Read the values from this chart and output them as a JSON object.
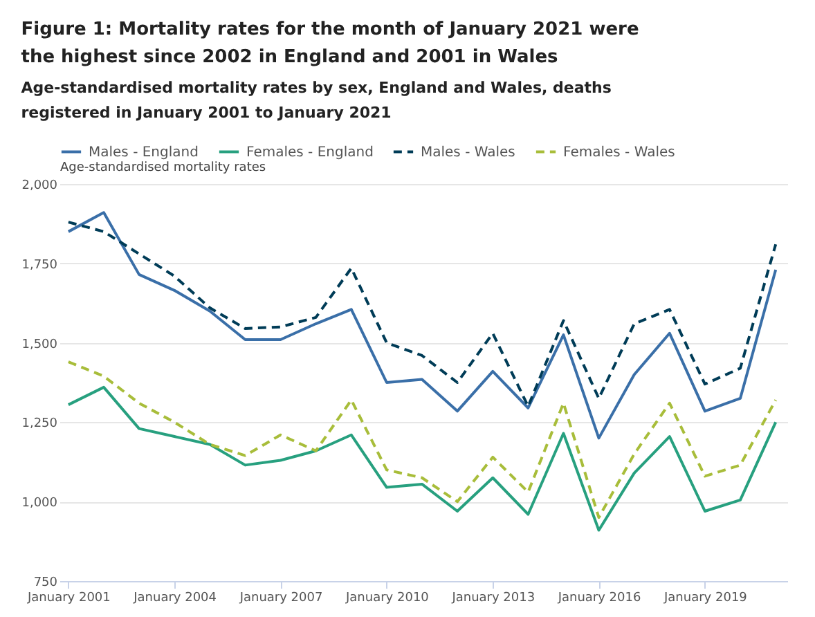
{
  "chart_data": {
    "type": "line",
    "title": "Figure 1: Mortality rates for the month of January 2021 were the highest since 2002 in England and 2001 in Wales",
    "subtitle": "Age-standardised mortality rates by sex, England and Wales, deaths registered in January 2001 to January 2021",
    "ylabel": "Age-standardised mortality rates",
    "x": [
      "2001-01",
      "2002-01",
      "2003-01",
      "2004-01",
      "2005-01",
      "2006-01",
      "2007-01",
      "2008-01",
      "2009-01",
      "2010-01",
      "2011-01",
      "2012-01",
      "2013-01",
      "2014-01",
      "2015-01",
      "2016-01",
      "2017-01",
      "2018-01",
      "2019-01",
      "2020-01",
      "2021-01"
    ],
    "series": [
      {
        "name": "Males - England",
        "color": "#3a6fa8",
        "line_style": "solid",
        "values": [
          1850,
          1910,
          1715,
          1665,
          1600,
          1510,
          1510,
          1560,
          1605,
          1375,
          1385,
          1285,
          1410,
          1295,
          1525,
          1200,
          1400,
          1530,
          1285,
          1325,
          1730
        ]
      },
      {
        "name": "Females - England",
        "color": "#27a07f",
        "line_style": "solid",
        "values": [
          1305,
          1360,
          1230,
          1205,
          1180,
          1115,
          1130,
          1160,
          1210,
          1045,
          1055,
          970,
          1075,
          960,
          1215,
          910,
          1090,
          1205,
          970,
          1005,
          1250
        ]
      },
      {
        "name": "Males - Wales",
        "color": "#003c57",
        "line_style": "dashed",
        "values": [
          1880,
          1850,
          1780,
          1710,
          1610,
          1545,
          1550,
          1580,
          1735,
          1500,
          1460,
          1375,
          1530,
          1300,
          1570,
          1325,
          1560,
          1605,
          1370,
          1420,
          1810
        ]
      },
      {
        "name": "Females - Wales",
        "color": "#a8bd3a",
        "line_style": "dashed",
        "values": [
          1440,
          1395,
          1310,
          1250,
          1180,
          1145,
          1210,
          1160,
          1320,
          1100,
          1075,
          1000,
          1140,
          1030,
          1310,
          950,
          1150,
          1310,
          1080,
          1115,
          1320
        ]
      }
    ],
    "xlim": [
      "2000-10",
      "2021-05"
    ],
    "xticks": [
      {
        "value": "2001-01",
        "label": "January 2001"
      },
      {
        "value": "2004-01",
        "label": "January 2004"
      },
      {
        "value": "2007-01",
        "label": "January 2007"
      },
      {
        "value": "2010-01",
        "label": "January 2010"
      },
      {
        "value": "2013-01",
        "label": "January 2013"
      },
      {
        "value": "2016-01",
        "label": "January 2016"
      },
      {
        "value": "2019-01",
        "label": "January 2019"
      }
    ],
    "ylim": [
      750,
      2000
    ],
    "yticks": [
      {
        "value": 750,
        "label": "750"
      },
      {
        "value": 1000,
        "label": "1,000"
      },
      {
        "value": 1250,
        "label": "1,250"
      },
      {
        "value": 1500,
        "label": "1,500"
      },
      {
        "value": 1750,
        "label": "1,750"
      },
      {
        "value": 2000,
        "label": "2,000"
      }
    ],
    "grid": "y",
    "legend": "top"
  }
}
